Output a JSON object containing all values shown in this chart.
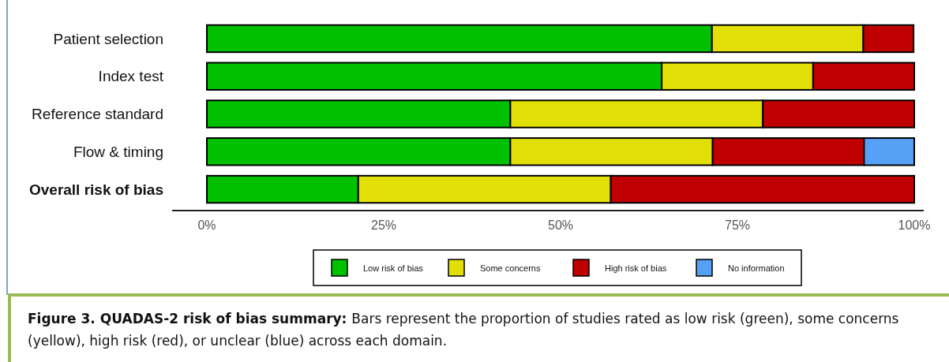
{
  "chart_data": {
    "type": "bar",
    "orientation": "horizontal",
    "stacked": true,
    "categories": [
      "Patient selection",
      "Index test",
      "Reference standard",
      "Flow & timing",
      "Overall risk of bias"
    ],
    "series": [
      {
        "name": "Low risk of bias",
        "color": "#00c000",
        "values": [
          71.4,
          64.3,
          42.9,
          42.9,
          21.4
        ]
      },
      {
        "name": "Some concerns",
        "color": "#e2df07",
        "values": [
          21.4,
          21.4,
          35.7,
          28.6,
          35.7
        ]
      },
      {
        "name": "High risk of bias",
        "color": "#c00000",
        "values": [
          7.1,
          14.3,
          21.4,
          21.4,
          42.9
        ]
      },
      {
        "name": "No information",
        "color": "#56a0f5",
        "values": [
          null,
          null,
          null,
          7.1,
          null
        ]
      }
    ],
    "xlim": [
      0,
      100
    ],
    "xticks": [
      {
        "value": 0,
        "label": "0%"
      },
      {
        "value": 25,
        "label": "25%"
      },
      {
        "value": 50,
        "label": "50%"
      },
      {
        "value": 75,
        "label": "75%"
      },
      {
        "value": 100,
        "label": "100%"
      }
    ],
    "legend": "bottom",
    "grid": false,
    "annotations": [
      "Figure 3. QUADAS-2 risk of bias summary:",
      "Bars represent the proportion of studies rated as low risk (green), some concerns (yellow), high risk (red), or unclear (blue) across each domain."
    ]
  }
}
